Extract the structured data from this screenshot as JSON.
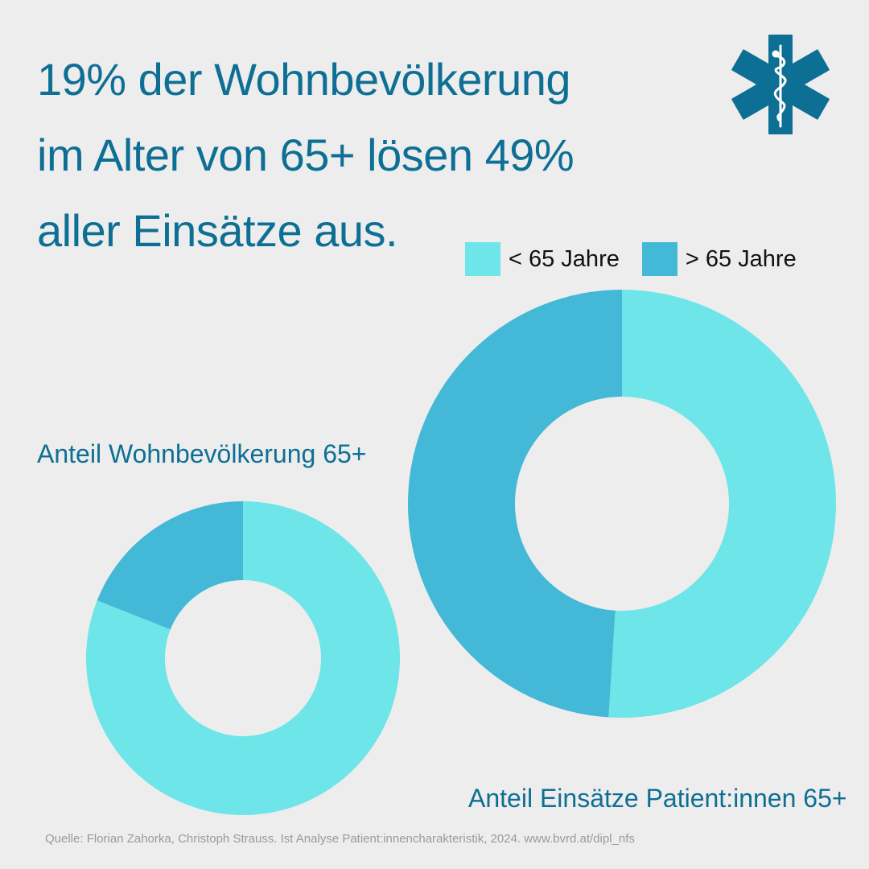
{
  "headline": {
    "lines": [
      "19% der Wohnbevölkerung",
      "im Alter von 65+ lösen 49%",
      "aller Einsätze aus."
    ]
  },
  "legend": {
    "items": [
      {
        "label": "< 65 Jahre",
        "color": "#6de5e9"
      },
      {
        "label": "> 65 Jahre",
        "color": "#43b8d7"
      }
    ]
  },
  "icons": {
    "logo": "star-of-life-icon"
  },
  "colors": {
    "accent": "#0e6f94",
    "under65": "#6de5e9",
    "over65": "#43b8d7",
    "background": "#ededed"
  },
  "chart_data": [
    {
      "type": "pie",
      "title": "Anteil Wohnbevölkerung 65+",
      "categories": [
        "< 65 Jahre",
        "> 65 Jahre"
      ],
      "values": [
        81,
        19
      ]
    },
    {
      "type": "pie",
      "title": "Anteil Einsätze Patient:innen 65+",
      "categories": [
        "< 65 Jahre",
        "> 65 Jahre"
      ],
      "values": [
        51,
        49
      ]
    }
  ],
  "source": "Quelle: Florian Zahorka, Christoph Strauss. Ist Analyse Patient:innencharakteristik, 2024. www.bvrd.at/dipl_nfs"
}
